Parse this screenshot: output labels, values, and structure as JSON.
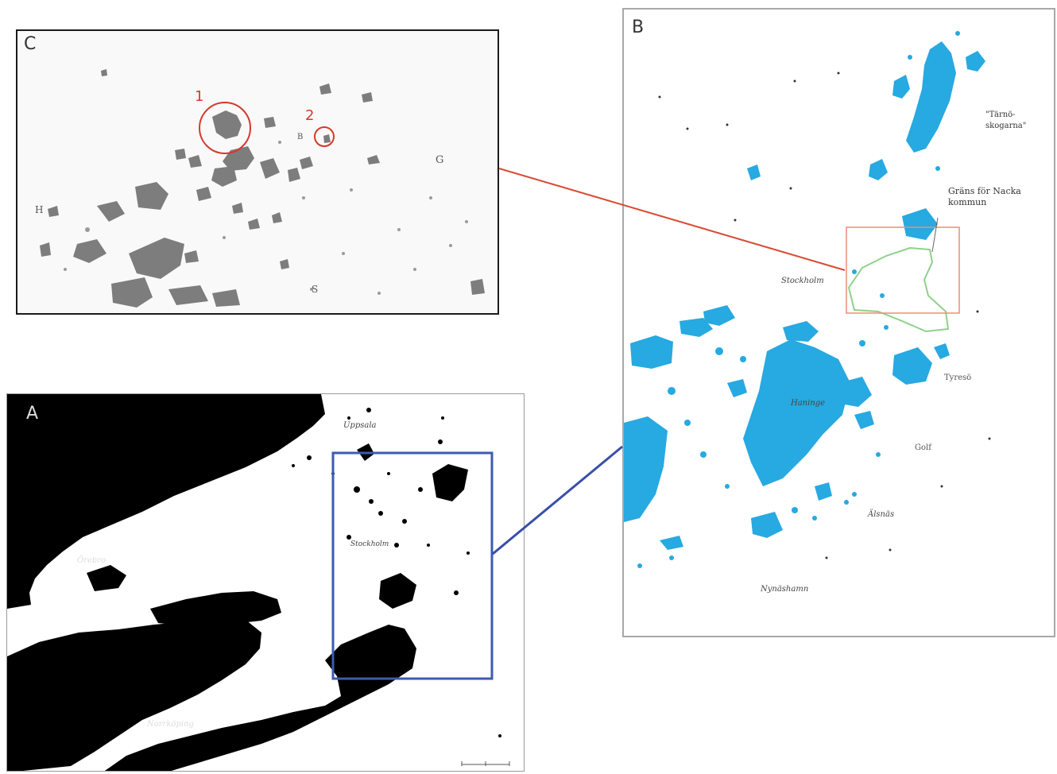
{
  "panels": {
    "a": {
      "label": "A"
    },
    "b": {
      "label": "B"
    },
    "c": {
      "label": "C"
    }
  },
  "panel_a_places": {
    "uppsala": "Uppsala",
    "orebro": "Örebro",
    "stockholm": "Stockholm",
    "norrkoping": "Norrköping"
  },
  "panel_b_places": {
    "tarnoskogarna": "\"Tärnö-",
    "tarnoskogarna_2": "skogarna\"",
    "granz_1": "Gräns för Nacka",
    "granz_2": "kommun",
    "stockholm": "Stockholm",
    "haninge": "Haninge",
    "tyreso": "Tyresö",
    "golf": "Golf",
    "alsnas": "Älsnäs",
    "nynashamn": "Nynäshamn"
  },
  "panel_c_marks": {
    "circle_1": "1",
    "circle_2": "2",
    "letter_g": "G",
    "letter_h": "H",
    "letter_s": "S",
    "letter_b": "B"
  },
  "colors": {
    "water_a": "#000000",
    "lakes_b": "#27a9e1",
    "patches_c": "#7d7d7d",
    "connector_c_b": "#d94a35",
    "connector_a_b": "#3a4fa8",
    "inset_a": "#3e5bb0",
    "inset_b": "#f08a7a",
    "nacka_border": "#8fd08a",
    "circle_c": "#d23a2a"
  }
}
